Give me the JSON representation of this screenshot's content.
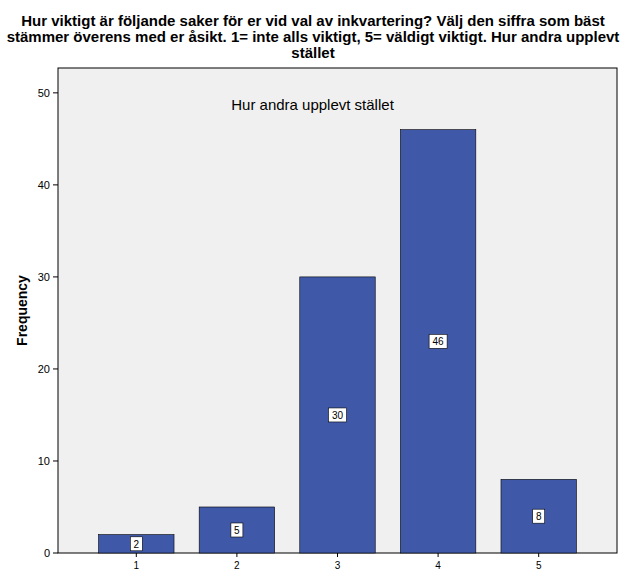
{
  "chart_data": {
    "type": "bar",
    "title": "Hur viktigt är följande saker för er vid val av inkvartering? Välj den siffra som bäst stämmer överens med er åsikt. 1= inte alls viktigt, 5= väldigt viktigt. Hur andra upplevt stället",
    "subtitle": "Hur andra upplevt stället",
    "y_label": "Frequency",
    "categories": [
      "1",
      "2",
      "3",
      "4",
      "5"
    ],
    "values": [
      2,
      5,
      30,
      46,
      8
    ],
    "color": "#3f59a8",
    "ylim": [
      0,
      52.7
    ],
    "yticks": [
      0,
      10,
      20,
      30,
      40,
      50
    ],
    "grid": false,
    "data_labels": true
  }
}
